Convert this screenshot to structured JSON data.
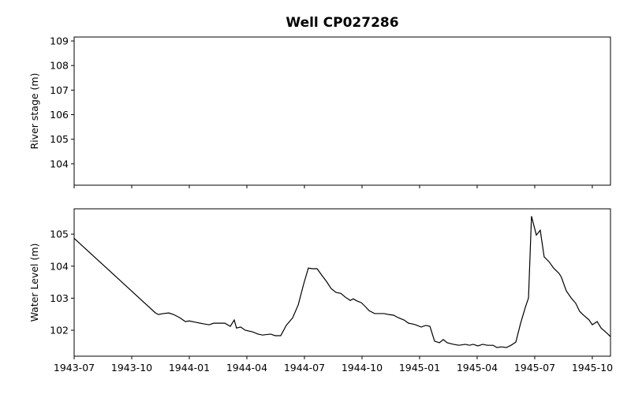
{
  "chart_data": [
    {
      "type": "line",
      "title": "Well CP027286",
      "ylabel": "River stage (m)",
      "xlim": [
        1943.5,
        1945.829
      ],
      "xticks": [
        1943.5,
        1943.75,
        1944.0,
        1944.25,
        1944.5,
        1944.75,
        1945.0,
        1945.25,
        1945.5,
        1945.75
      ],
      "ylim": [
        103.13,
        109.16
      ],
      "yticks": [
        104,
        105,
        106,
        107,
        108,
        109
      ],
      "series": []
    },
    {
      "type": "line",
      "ylabel": "Water Level (m)",
      "xlim": [
        1943.5,
        1945.829
      ],
      "xticks": [
        {
          "value": 1943.5,
          "label": "1943-07"
        },
        {
          "value": 1943.75,
          "label": "1943-10"
        },
        {
          "value": 1944.0,
          "label": "1944-01"
        },
        {
          "value": 1944.25,
          "label": "1944-04"
        },
        {
          "value": 1944.5,
          "label": "1944-07"
        },
        {
          "value": 1944.75,
          "label": "1944-10"
        },
        {
          "value": 1945.0,
          "label": "1945-01"
        },
        {
          "value": 1945.25,
          "label": "1945-04"
        },
        {
          "value": 1945.5,
          "label": "1945-07"
        },
        {
          "value": 1945.75,
          "label": "1945-10"
        }
      ],
      "ylim": [
        101.19,
        105.79
      ],
      "yticks": [
        102,
        103,
        104,
        105
      ],
      "x": [
        1943.5,
        1943.853,
        1943.866,
        1943.887,
        1943.911,
        1943.932,
        1943.959,
        1943.983,
        1944.0,
        1944.027,
        1944.062,
        1944.086,
        1944.106,
        1944.13,
        1944.154,
        1944.178,
        1944.195,
        1944.205,
        1944.223,
        1944.243,
        1944.274,
        1944.298,
        1944.318,
        1944.353,
        1944.373,
        1944.397,
        1944.421,
        1944.449,
        1944.473,
        1944.497,
        1944.517,
        1944.534,
        1944.555,
        1944.575,
        1944.596,
        1944.616,
        1944.637,
        1944.658,
        1944.678,
        1944.699,
        1944.712,
        1944.729,
        1944.747,
        1944.764,
        1944.781,
        1944.805,
        1944.825,
        1944.846,
        1944.866,
        1944.887,
        1944.908,
        1944.932,
        1944.952,
        1944.966,
        1944.983,
        1945.007,
        1945.027,
        1945.045,
        1945.065,
        1945.086,
        1945.103,
        1945.12,
        1945.147,
        1945.171,
        1945.199,
        1945.216,
        1945.233,
        1945.253,
        1945.274,
        1945.295,
        1945.319,
        1945.336,
        1945.356,
        1945.377,
        1945.397,
        1945.418,
        1945.438,
        1945.459,
        1945.473,
        1945.486,
        1945.507,
        1945.524,
        1945.541,
        1945.562,
        1945.582,
        1945.606,
        1945.616,
        1945.637,
        1945.658,
        1945.678,
        1945.695,
        1945.712,
        1945.736,
        1945.75,
        1945.771,
        1945.788,
        1945.815,
        1945.829
      ],
      "series": [
        {
          "color": "#000000",
          "values": [
            104.87,
            102.54,
            102.49,
            102.52,
            102.54,
            102.49,
            102.39,
            102.27,
            102.29,
            102.25,
            102.2,
            102.17,
            102.22,
            102.22,
            102.22,
            102.12,
            102.32,
            102.07,
            102.1,
            102.0,
            101.95,
            101.88,
            101.85,
            101.88,
            101.83,
            101.83,
            102.15,
            102.39,
            102.79,
            103.45,
            103.94,
            103.92,
            103.92,
            103.72,
            103.52,
            103.3,
            103.18,
            103.15,
            103.03,
            102.93,
            102.98,
            102.91,
            102.86,
            102.74,
            102.61,
            102.52,
            102.52,
            102.52,
            102.49,
            102.47,
            102.39,
            102.32,
            102.22,
            102.2,
            102.17,
            102.1,
            102.15,
            102.12,
            101.66,
            101.61,
            101.71,
            101.61,
            101.56,
            101.53,
            101.56,
            101.53,
            101.56,
            101.51,
            101.56,
            101.53,
            101.53,
            101.46,
            101.48,
            101.46,
            101.53,
            101.63,
            102.2,
            102.71,
            103.01,
            105.56,
            104.97,
            105.12,
            104.29,
            104.14,
            103.94,
            103.77,
            103.65,
            103.23,
            103.01,
            102.84,
            102.59,
            102.47,
            102.32,
            102.17,
            102.27,
            102.07,
            101.9,
            101.8
          ]
        }
      ]
    }
  ]
}
